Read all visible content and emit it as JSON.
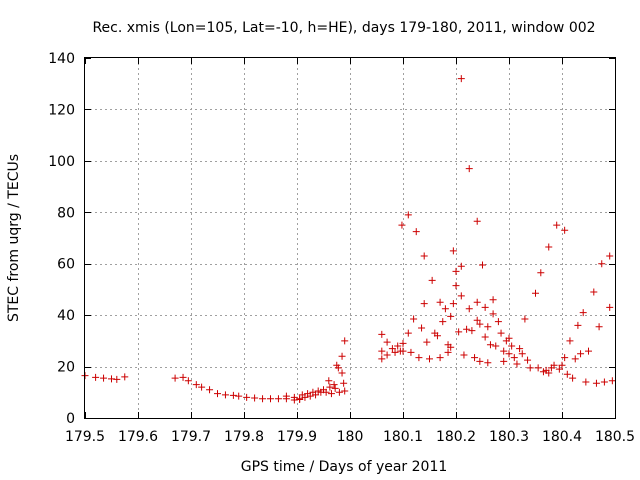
{
  "chart_data": {
    "type": "scatter",
    "title": "Rec. xmis (Lon=105, Lat=-10, h=HE), days 179-180, 2011, window 002",
    "xlabel": "GPS time / Days of year 2011",
    "ylabel": "STEC from uqrg / TECUs",
    "xlim": [
      179.5,
      180.5
    ],
    "ylim": [
      0,
      140
    ],
    "grid": true,
    "marker": "+",
    "color": "#cc0000",
    "xticks": [
      179.5,
      179.6,
      179.7,
      179.8,
      179.9,
      180,
      180.1,
      180.2,
      180.3,
      180.4,
      180.5
    ],
    "xtick_labels": [
      "179.5",
      "179.6",
      "179.7",
      "179.8",
      "179.9",
      "180",
      "180.1",
      "180.2",
      "180.3",
      "180.4",
      "180.5"
    ],
    "yticks": [
      0,
      20,
      40,
      60,
      80,
      100,
      120,
      140
    ],
    "ytick_labels": [
      "0",
      "20",
      "40",
      "60",
      "80",
      "100",
      "120",
      "140"
    ],
    "series": [
      {
        "name": "STEC",
        "points": [
          [
            179.5,
            16.5
          ],
          [
            179.52,
            15.8
          ],
          [
            179.535,
            15.5
          ],
          [
            179.55,
            15.2
          ],
          [
            179.56,
            15.0
          ],
          [
            179.575,
            16.0
          ],
          [
            179.67,
            15.5
          ],
          [
            179.685,
            15.8
          ],
          [
            179.695,
            14.5
          ],
          [
            179.71,
            13.0
          ],
          [
            179.72,
            12.0
          ],
          [
            179.735,
            11.0
          ],
          [
            179.75,
            9.5
          ],
          [
            179.765,
            9.0
          ],
          [
            179.78,
            8.8
          ],
          [
            179.79,
            8.5
          ],
          [
            179.805,
            8.0
          ],
          [
            179.82,
            7.8
          ],
          [
            179.835,
            7.5
          ],
          [
            179.85,
            7.5
          ],
          [
            179.865,
            7.5
          ],
          [
            179.88,
            8.5
          ],
          [
            179.88,
            7.5
          ],
          [
            179.895,
            8.0
          ],
          [
            179.895,
            7.0
          ],
          [
            179.905,
            7.5
          ],
          [
            179.905,
            7.2
          ],
          [
            179.91,
            9.0
          ],
          [
            179.915,
            8.0
          ],
          [
            179.92,
            9.5
          ],
          [
            179.925,
            8.5
          ],
          [
            179.93,
            10.0
          ],
          [
            179.935,
            9.0
          ],
          [
            179.94,
            10.5
          ],
          [
            179.945,
            10.0
          ],
          [
            179.95,
            11.0
          ],
          [
            179.955,
            10.0
          ],
          [
            179.96,
            14.5
          ],
          [
            179.962,
            12.0
          ],
          [
            179.965,
            9.5
          ],
          [
            179.97,
            13.0
          ],
          [
            179.972,
            11.5
          ],
          [
            179.975,
            20.5
          ],
          [
            179.978,
            19.5
          ],
          [
            179.98,
            10.0
          ],
          [
            179.985,
            24.0
          ],
          [
            179.985,
            17.5
          ],
          [
            179.988,
            13.5
          ],
          [
            179.99,
            30.0
          ],
          [
            179.99,
            10.5
          ],
          [
            180.06,
            32.5
          ],
          [
            180.06,
            26.0
          ],
          [
            180.06,
            23.0
          ],
          [
            180.07,
            29.5
          ],
          [
            180.07,
            24.5
          ],
          [
            180.08,
            27.0
          ],
          [
            180.085,
            25.5
          ],
          [
            180.09,
            28.0
          ],
          [
            180.095,
            26.0
          ],
          [
            180.098,
            75.0
          ],
          [
            180.1,
            29.0
          ],
          [
            180.1,
            26.0
          ],
          [
            180.11,
            79.0
          ],
          [
            180.11,
            33.0
          ],
          [
            180.115,
            25.5
          ],
          [
            180.12,
            38.5
          ],
          [
            180.125,
            72.5
          ],
          [
            180.13,
            23.5
          ],
          [
            180.135,
            35.0
          ],
          [
            180.14,
            44.5
          ],
          [
            180.14,
            63.0
          ],
          [
            180.145,
            29.5
          ],
          [
            180.15,
            23.0
          ],
          [
            180.155,
            53.5
          ],
          [
            180.16,
            33.0
          ],
          [
            180.165,
            32.0
          ],
          [
            180.17,
            45.0
          ],
          [
            180.17,
            23.5
          ],
          [
            180.175,
            37.5
          ],
          [
            180.18,
            42.5
          ],
          [
            180.185,
            28.5
          ],
          [
            180.185,
            25.5
          ],
          [
            180.19,
            39.5
          ],
          [
            180.19,
            27.5
          ],
          [
            180.195,
            44.5
          ],
          [
            180.195,
            65.0
          ],
          [
            180.2,
            51.5
          ],
          [
            180.2,
            57.0
          ],
          [
            180.205,
            33.5
          ],
          [
            180.21,
            59.0
          ],
          [
            180.21,
            47.5
          ],
          [
            180.21,
            132.0
          ],
          [
            180.215,
            24.5
          ],
          [
            180.22,
            34.5
          ],
          [
            180.225,
            97.0
          ],
          [
            180.225,
            42.5
          ],
          [
            180.23,
            34.0
          ],
          [
            180.235,
            23.5
          ],
          [
            180.24,
            76.5
          ],
          [
            180.24,
            45.0
          ],
          [
            180.24,
            38.0
          ],
          [
            180.245,
            22.0
          ],
          [
            180.245,
            36.5
          ],
          [
            180.25,
            59.5
          ],
          [
            180.255,
            43.0
          ],
          [
            180.255,
            31.5
          ],
          [
            180.26,
            35.5
          ],
          [
            180.26,
            21.5
          ],
          [
            180.265,
            28.5
          ],
          [
            180.27,
            46.0
          ],
          [
            180.27,
            40.5
          ],
          [
            180.275,
            28.0
          ],
          [
            180.28,
            37.5
          ],
          [
            180.285,
            33.0
          ],
          [
            180.29,
            26.0
          ],
          [
            180.29,
            22.0
          ],
          [
            180.295,
            30.0
          ],
          [
            180.3,
            31.0
          ],
          [
            180.3,
            25.0
          ],
          [
            180.305,
            28.0
          ],
          [
            180.31,
            23.5
          ],
          [
            180.315,
            21.0
          ],
          [
            180.32,
            27.0
          ],
          [
            180.325,
            25.0
          ],
          [
            180.33,
            38.5
          ],
          [
            180.335,
            22.5
          ],
          [
            180.34,
            19.5
          ],
          [
            180.35,
            48.5
          ],
          [
            180.355,
            19.5
          ],
          [
            180.36,
            56.5
          ],
          [
            180.365,
            18.0
          ],
          [
            180.37,
            18.5
          ],
          [
            180.375,
            66.5
          ],
          [
            180.375,
            17.5
          ],
          [
            180.38,
            19.5
          ],
          [
            180.385,
            20.5
          ],
          [
            180.39,
            75.0
          ],
          [
            180.395,
            19.0
          ],
          [
            180.4,
            20.5
          ],
          [
            180.405,
            73.0
          ],
          [
            180.405,
            23.5
          ],
          [
            180.41,
            17.0
          ],
          [
            180.415,
            30.0
          ],
          [
            180.42,
            15.5
          ],
          [
            180.425,
            23.0
          ],
          [
            180.43,
            36.0
          ],
          [
            180.435,
            25.0
          ],
          [
            180.44,
            41.0
          ],
          [
            180.445,
            14.0
          ],
          [
            180.45,
            26.0
          ],
          [
            180.46,
            49.0
          ],
          [
            180.465,
            13.5
          ],
          [
            180.47,
            35.5
          ],
          [
            180.475,
            60.0
          ],
          [
            180.48,
            14.0
          ],
          [
            180.49,
            63.0
          ],
          [
            180.49,
            43.0
          ],
          [
            180.495,
            14.5
          ]
        ]
      }
    ]
  }
}
